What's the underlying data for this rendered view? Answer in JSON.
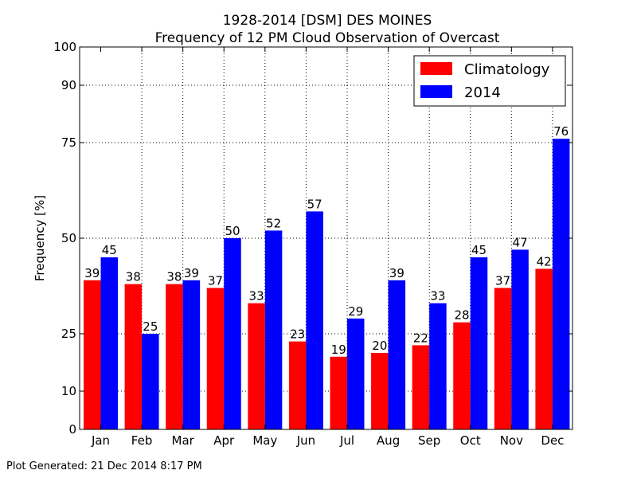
{
  "chart_data": {
    "type": "bar",
    "title": "1928-2014 [DSM] DES MOINES",
    "subtitle": "Frequency of 12 PM Cloud Observation of Overcast",
    "xlabel": "",
    "ylabel": "Frequency [%]",
    "ylim": [
      0,
      100
    ],
    "yticks": [
      0,
      10,
      25,
      50,
      75,
      90,
      100
    ],
    "grid": true,
    "legend_position": "top-right",
    "categories": [
      "Jan",
      "Feb",
      "Mar",
      "Apr",
      "May",
      "Jun",
      "Jul",
      "Aug",
      "Sep",
      "Oct",
      "Nov",
      "Dec"
    ],
    "series": [
      {
        "name": "Climatology",
        "color": "#ff0000",
        "values": [
          39,
          38,
          38,
          37,
          33,
          23,
          19,
          20,
          22,
          28,
          37,
          42
        ],
        "labels": [
          "39",
          "38",
          "38",
          "37",
          "33",
          "23",
          "19",
          "20",
          "22",
          "28",
          "37",
          "42"
        ]
      },
      {
        "name": "2014",
        "color": "#0000ff",
        "values": [
          45,
          25,
          39,
          50,
          52,
          57,
          29,
          39,
          33,
          45,
          47,
          76
        ],
        "labels": [
          "45",
          "25",
          "39",
          "50",
          "52",
          "57",
          "29",
          "39",
          "33",
          "45",
          "47",
          "76"
        ]
      }
    ]
  },
  "footer": {
    "text": "Plot Generated: 21 Dec 2014 8:17 PM"
  }
}
